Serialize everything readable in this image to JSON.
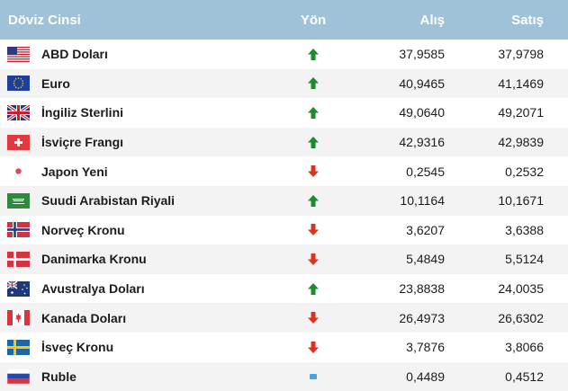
{
  "header": {
    "name": "Döviz Cinsi",
    "direction": "Yön",
    "buy": "Alış",
    "sell": "Satış"
  },
  "colors": {
    "header_bg": "#9fc2d9",
    "up": "#1e8a2e",
    "down": "#d9351e",
    "neutral": "#4aa3e0"
  },
  "rows": [
    {
      "name": "ABD Doları",
      "flag": "us-flag-icon",
      "direction": "up",
      "buy": "37,9585",
      "sell": "37,9798"
    },
    {
      "name": "Euro",
      "flag": "eu-flag-icon",
      "direction": "up",
      "buy": "40,9465",
      "sell": "41,1469"
    },
    {
      "name": "İngiliz Sterlini",
      "flag": "uk-flag-icon",
      "direction": "up",
      "buy": "49,0640",
      "sell": "49,2071"
    },
    {
      "name": "İsviçre Frangı",
      "flag": "ch-flag-icon",
      "direction": "up",
      "buy": "42,9316",
      "sell": "42,9839"
    },
    {
      "name": "Japon Yeni",
      "flag": "jp-flag-icon",
      "direction": "down",
      "buy": "0,2545",
      "sell": "0,2532"
    },
    {
      "name": "Suudi Arabistan Riyali",
      "flag": "sa-flag-icon",
      "direction": "up",
      "buy": "10,1164",
      "sell": "10,1671"
    },
    {
      "name": "Norveç Kronu",
      "flag": "no-flag-icon",
      "direction": "down",
      "buy": "3,6207",
      "sell": "3,6388"
    },
    {
      "name": "Danimarka Kronu",
      "flag": "dk-flag-icon",
      "direction": "down",
      "buy": "5,4849",
      "sell": "5,5124"
    },
    {
      "name": "Avustralya Doları",
      "flag": "au-flag-icon",
      "direction": "up",
      "buy": "23,8838",
      "sell": "24,0035"
    },
    {
      "name": "Kanada Doları",
      "flag": "ca-flag-icon",
      "direction": "down",
      "buy": "26,4973",
      "sell": "26,6302"
    },
    {
      "name": "İsveç Kronu",
      "flag": "se-flag-icon",
      "direction": "down",
      "buy": "3,7876",
      "sell": "3,8066"
    },
    {
      "name": "Ruble",
      "flag": "ru-flag-icon",
      "direction": "neutral",
      "buy": "0,4489",
      "sell": "0,4512"
    }
  ]
}
